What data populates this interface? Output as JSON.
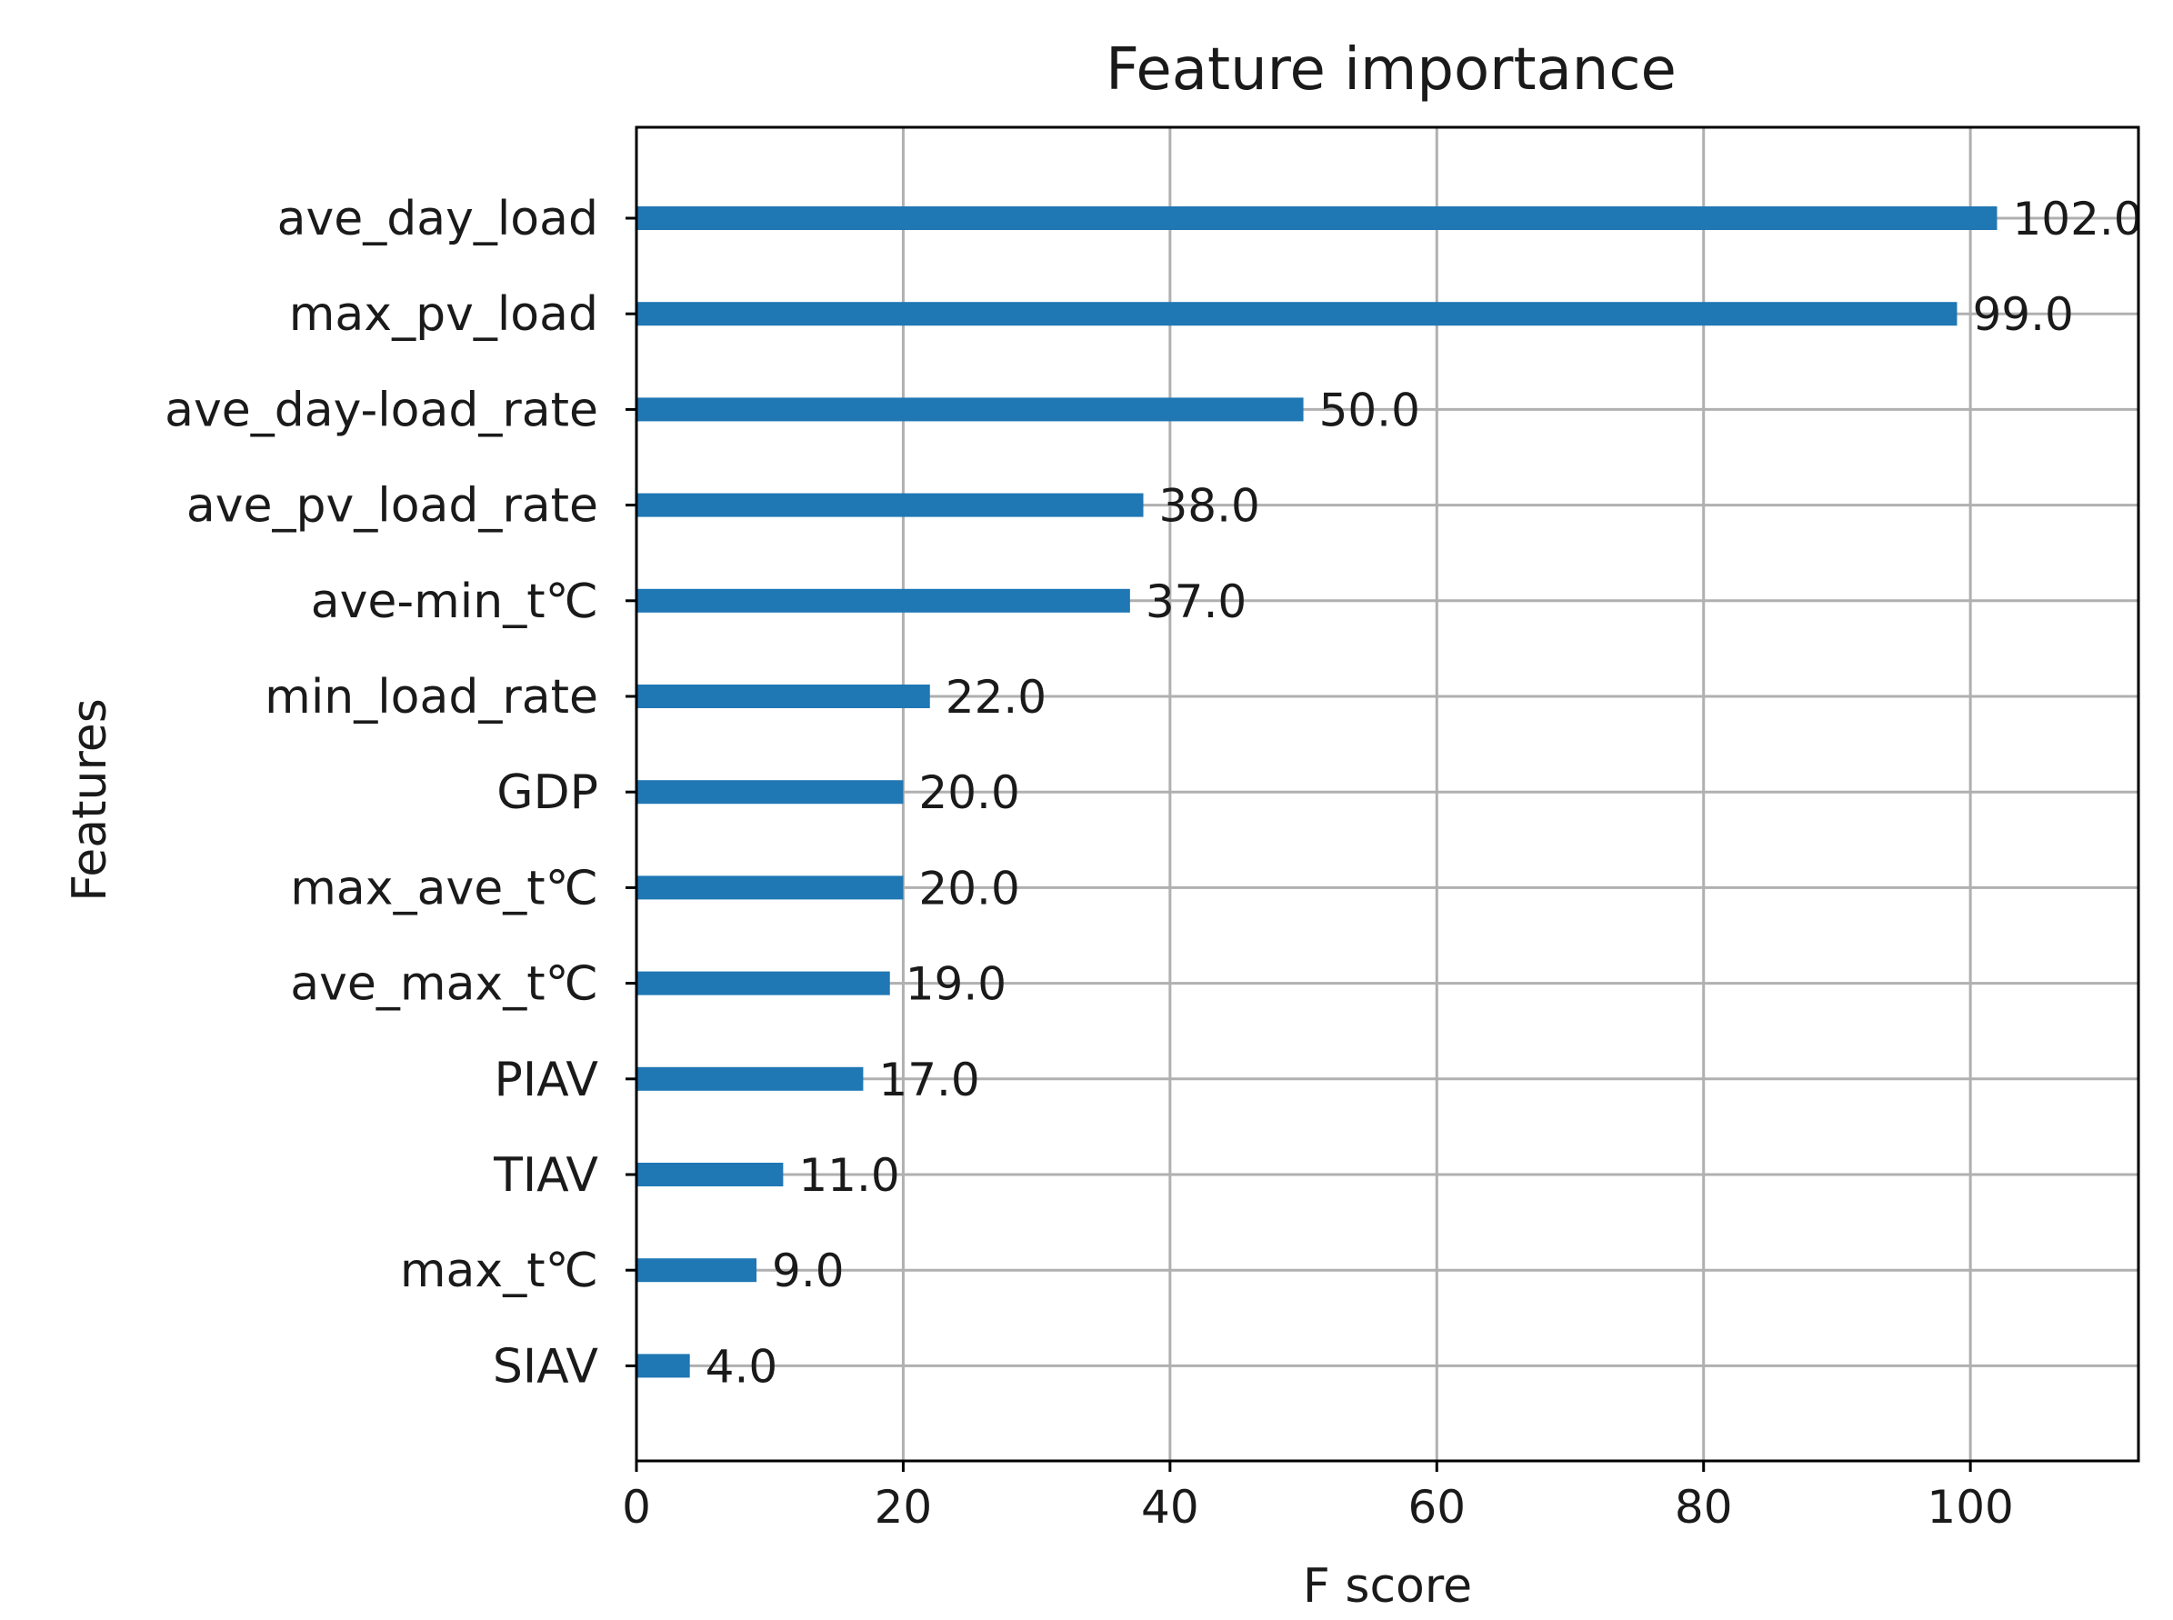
{
  "chart_data": {
    "type": "bar",
    "orientation": "horizontal",
    "title": "Feature importance",
    "xlabel": "F score",
    "ylabel": "Features",
    "categories": [
      "ave_day_load",
      "max_pv_load",
      "ave_day-load_rate",
      "ave_pv_load_rate",
      "ave-min_t℃",
      "min_load_rate",
      "GDP",
      "max_ave_t℃",
      "ave_max_t℃",
      "PIAV",
      "TIAV",
      "max_t℃",
      "SIAV"
    ],
    "values": [
      102.0,
      99.0,
      50.0,
      38.0,
      37.0,
      22.0,
      20.0,
      20.0,
      19.0,
      17.0,
      11.0,
      9.0,
      4.0
    ],
    "value_labels": [
      "102.0",
      "99.0",
      "50.0",
      "38.0",
      "37.0",
      "22.0",
      "20.0",
      "20.0",
      "19.0",
      "17.0",
      "11.0",
      "9.0",
      "4.0"
    ],
    "xlim": [
      0,
      112.6
    ],
    "xticks": [
      "0",
      "20",
      "40",
      "60",
      "80",
      "100"
    ],
    "grid": true,
    "bar_color": "#1f77b4"
  }
}
